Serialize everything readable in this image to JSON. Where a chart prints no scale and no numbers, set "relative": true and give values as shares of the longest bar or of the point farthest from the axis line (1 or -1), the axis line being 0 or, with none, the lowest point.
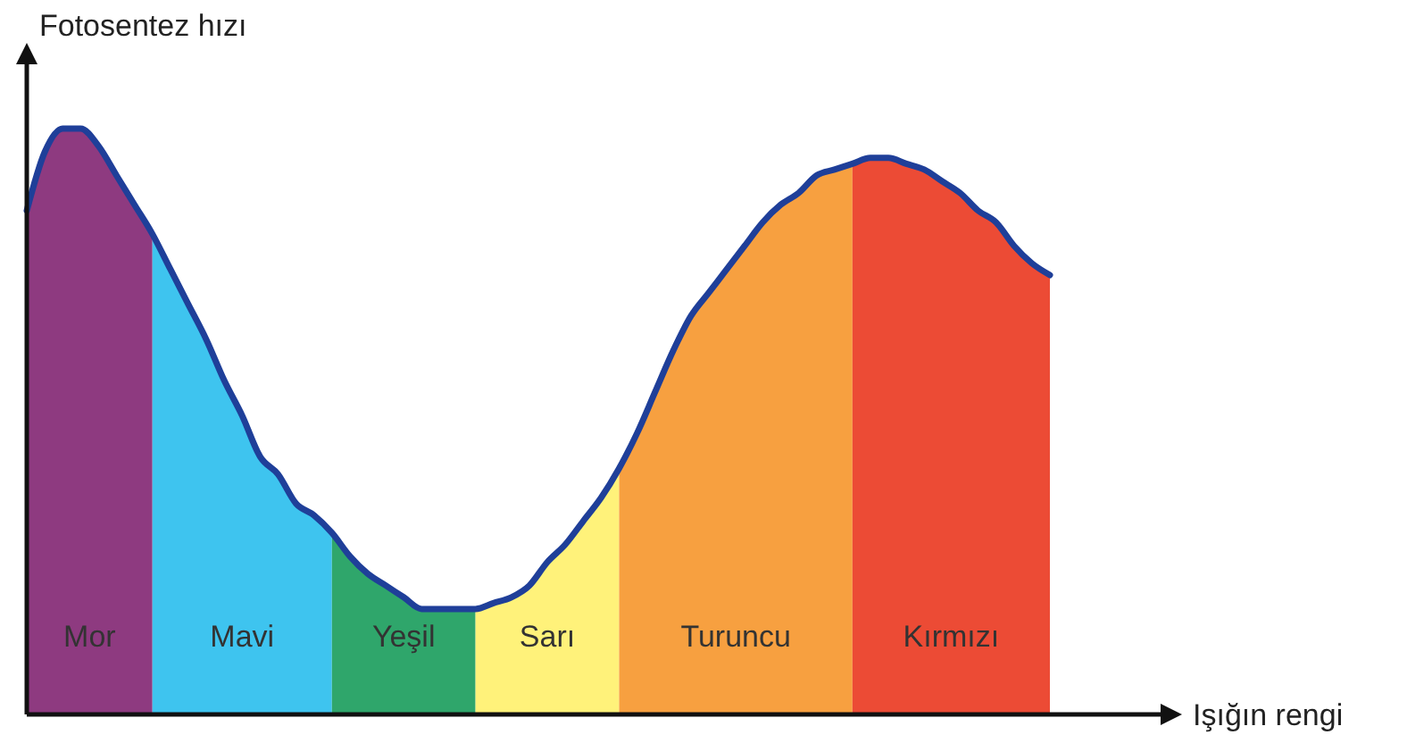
{
  "chart_data": {
    "type": "area",
    "relative": true,
    "xlabel": "Işığın rengi",
    "ylabel": "Fotosentez hızı",
    "categories": [
      null,
      null,
      null,
      null,
      null,
      null,
      null,
      null,
      null,
      null,
      null,
      null,
      null,
      null,
      null,
      null,
      null,
      null,
      null,
      null,
      null,
      null,
      null,
      null,
      null,
      null,
      null,
      null,
      null,
      null,
      null,
      null,
      null,
      null,
      null,
      null,
      null,
      null,
      null,
      null,
      null,
      null,
      null,
      null,
      null,
      null,
      null,
      null,
      null,
      null,
      null,
      null,
      null,
      null,
      null,
      null,
      null,
      null
    ],
    "series": [
      {
        "name": "Mor",
        "color": "#8e3a80",
        "values": [
          0.86,
          0.96,
          1,
          1,
          0.97,
          0.92,
          0.87,
          0.82,
          null,
          null,
          null,
          null,
          null,
          null,
          null,
          null,
          null,
          null,
          null,
          null,
          null,
          null,
          null,
          null,
          null,
          null,
          null,
          null,
          null,
          null,
          null,
          null,
          null,
          null,
          null,
          null,
          null,
          null,
          null,
          null,
          null,
          null,
          null,
          null,
          null,
          null,
          null,
          null,
          null,
          null,
          null,
          null,
          null,
          null,
          null,
          null,
          null,
          null
        ]
      },
      {
        "name": "Mavi",
        "color": "#3ec4ef",
        "values": [
          null,
          null,
          null,
          null,
          null,
          null,
          null,
          0.82,
          0.76,
          0.7,
          0.64,
          0.57,
          0.51,
          0.44,
          0.41,
          0.36,
          0.34,
          0.31,
          null,
          null,
          null,
          null,
          null,
          null,
          null,
          null,
          null,
          null,
          null,
          null,
          null,
          null,
          null,
          null,
          null,
          null,
          null,
          null,
          null,
          null,
          null,
          null,
          null,
          null,
          null,
          null,
          null,
          null,
          null,
          null,
          null,
          null,
          null,
          null,
          null,
          null,
          null,
          null
        ]
      },
      {
        "name": "Yeşil",
        "color": "#2fa66b",
        "values": [
          null,
          null,
          null,
          null,
          null,
          null,
          null,
          null,
          null,
          null,
          null,
          null,
          null,
          null,
          null,
          null,
          null,
          0.31,
          0.27,
          0.24,
          0.22,
          0.2,
          0.18,
          0.18,
          0.18,
          0.18,
          null,
          null,
          null,
          null,
          null,
          null,
          null,
          null,
          null,
          null,
          null,
          null,
          null,
          null,
          null,
          null,
          null,
          null,
          null,
          null,
          null,
          null,
          null,
          null,
          null,
          null,
          null,
          null,
          null,
          null,
          null,
          null
        ]
      },
      {
        "name": "Sarı",
        "color": "#fff27a",
        "values": [
          null,
          null,
          null,
          null,
          null,
          null,
          null,
          null,
          null,
          null,
          null,
          null,
          null,
          null,
          null,
          null,
          null,
          null,
          null,
          null,
          null,
          null,
          null,
          null,
          null,
          0.18,
          0.19,
          0.2,
          0.22,
          0.26,
          0.29,
          0.33,
          0.37,
          0.42,
          null,
          null,
          null,
          null,
          null,
          null,
          null,
          null,
          null,
          null,
          null,
          null,
          null,
          null,
          null,
          null,
          null,
          null,
          null,
          null,
          null,
          null,
          null,
          null
        ]
      },
      {
        "name": "Turuncu",
        "color": "#f7a040",
        "values": [
          null,
          null,
          null,
          null,
          null,
          null,
          null,
          null,
          null,
          null,
          null,
          null,
          null,
          null,
          null,
          null,
          null,
          null,
          null,
          null,
          null,
          null,
          null,
          null,
          null,
          null,
          null,
          null,
          null,
          null,
          null,
          null,
          null,
          0.42,
          0.48,
          0.55,
          0.62,
          0.68,
          0.72,
          0.76,
          0.8,
          0.84,
          0.87,
          0.89,
          0.92,
          0.93,
          0.94,
          null,
          null,
          null,
          null,
          null,
          null,
          null,
          null,
          null,
          null,
          null
        ]
      },
      {
        "name": "Kırmızı",
        "color": "#ec4b35",
        "values": [
          null,
          null,
          null,
          null,
          null,
          null,
          null,
          null,
          null,
          null,
          null,
          null,
          null,
          null,
          null,
          null,
          null,
          null,
          null,
          null,
          null,
          null,
          null,
          null,
          null,
          null,
          null,
          null,
          null,
          null,
          null,
          null,
          null,
          null,
          null,
          null,
          null,
          null,
          null,
          null,
          null,
          null,
          null,
          null,
          null,
          null,
          0.94,
          0.95,
          0.95,
          0.94,
          0.93,
          0.91,
          0.89,
          0.86,
          0.84,
          0.8,
          0.77,
          0.75
        ]
      },
      {
        "type": "line",
        "color": "#1f3f99",
        "line_style": "solid",
        "marker": "none",
        "values": [
          0.86,
          0.96,
          1,
          1,
          0.97,
          0.92,
          0.87,
          0.82,
          0.76,
          0.7,
          0.64,
          0.57,
          0.51,
          0.44,
          0.41,
          0.36,
          0.34,
          0.31,
          0.27,
          0.24,
          0.22,
          0.2,
          0.18,
          0.18,
          0.18,
          0.18,
          0.19,
          0.2,
          0.22,
          0.26,
          0.29,
          0.33,
          0.37,
          0.42,
          0.48,
          0.55,
          0.62,
          0.68,
          0.72,
          0.76,
          0.8,
          0.84,
          0.87,
          0.89,
          0.92,
          0.93,
          0.94,
          0.95,
          0.95,
          0.94,
          0.93,
          0.91,
          0.89,
          0.86,
          0.84,
          0.8,
          0.77,
          0.75
        ]
      }
    ]
  }
}
